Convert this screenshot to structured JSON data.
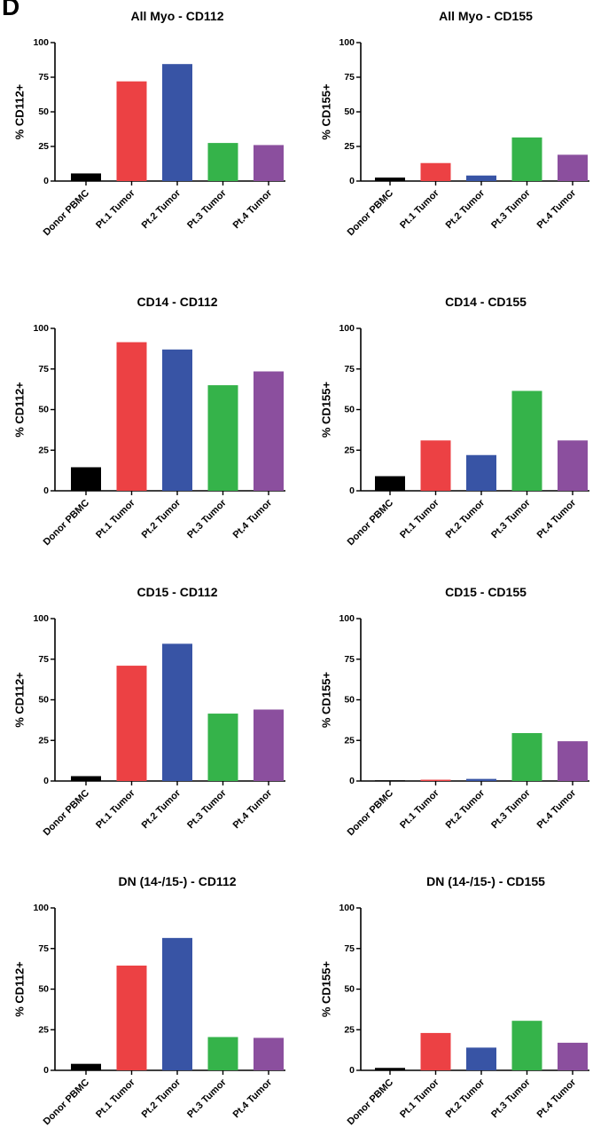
{
  "panel_letter": "D",
  "colors": {
    "Donor PBMC": "#000000",
    "Pt.1 Tumor": "#ec4144",
    "Pt.2 Tumor": "#3854a5",
    "Pt.3 Tumor": "#35b34a",
    "Pt.4 Tumor": "#8b4f9e"
  },
  "chart_data": [
    {
      "type": "bar",
      "title": "All Myo - CD112",
      "ylabel": "% CD112+",
      "ylim": [
        0,
        100
      ],
      "yticks": [
        0,
        25,
        50,
        75,
        100
      ],
      "categories": [
        "Donor PBMC",
        "Pt.1 Tumor",
        "Pt.2 Tumor",
        "Pt.3 Tumor",
        "Pt.4 Tumor"
      ],
      "values": [
        5.5,
        72,
        84.5,
        27.5,
        26
      ]
    },
    {
      "type": "bar",
      "title": "All Myo - CD155",
      "ylabel": "% CD155+",
      "ylim": [
        0,
        100
      ],
      "yticks": [
        0,
        25,
        50,
        75,
        100
      ],
      "categories": [
        "Donor PBMC",
        "Pt.1 Tumor",
        "Pt.2 Tumor",
        "Pt.3 Tumor",
        "Pt.4 Tumor"
      ],
      "values": [
        2.5,
        13,
        4,
        31.5,
        19
      ]
    },
    {
      "type": "bar",
      "title": "CD14 - CD112",
      "ylabel": "% CD112+",
      "ylim": [
        0,
        100
      ],
      "yticks": [
        0,
        25,
        50,
        75,
        100
      ],
      "categories": [
        "Donor PBMC",
        "Pt.1 Tumor",
        "Pt.2 Tumor",
        "Pt.3 Tumor",
        "Pt.4 Tumor"
      ],
      "values": [
        14.5,
        91.5,
        87,
        65,
        73.5
      ]
    },
    {
      "type": "bar",
      "title": "CD14 - CD155",
      "ylabel": "% CD155+",
      "ylim": [
        0,
        100
      ],
      "yticks": [
        0,
        25,
        50,
        75,
        100
      ],
      "categories": [
        "Donor PBMC",
        "Pt.1 Tumor",
        "Pt.2 Tumor",
        "Pt.3 Tumor",
        "Pt.4 Tumor"
      ],
      "values": [
        9,
        31,
        22,
        61.5,
        31
      ]
    },
    {
      "type": "bar",
      "title": "CD15 - CD112",
      "ylabel": "% CD112+",
      "ylim": [
        0,
        100
      ],
      "yticks": [
        0,
        25,
        50,
        75,
        100
      ],
      "categories": [
        "Donor PBMC",
        "Pt.1 Tumor",
        "Pt.2 Tumor",
        "Pt.3 Tumor",
        "Pt.4 Tumor"
      ],
      "values": [
        3,
        71,
        84.5,
        41.5,
        44
      ]
    },
    {
      "type": "bar",
      "title": "CD15 - CD155",
      "ylabel": "% CD155+",
      "ylim": [
        0,
        100
      ],
      "yticks": [
        0,
        25,
        50,
        75,
        100
      ],
      "categories": [
        "Donor PBMC",
        "Pt.1 Tumor",
        "Pt.2 Tumor",
        "Pt.3 Tumor",
        "Pt.4 Tumor"
      ],
      "values": [
        0.3,
        0.8,
        1.3,
        29.5,
        24.5
      ]
    },
    {
      "type": "bar",
      "title": "DN (14-/15-) - CD112",
      "ylabel": "% CD112+",
      "ylim": [
        0,
        100
      ],
      "yticks": [
        0,
        25,
        50,
        75,
        100
      ],
      "categories": [
        "Donor PBMC",
        "Pt.1 Tumor",
        "Pt.2 Tumor",
        "Pt.3 Tumor",
        "Pt.4 Tumor"
      ],
      "values": [
        4,
        64.5,
        81.5,
        20.5,
        20
      ]
    },
    {
      "type": "bar",
      "title": "DN (14-/15-) - CD155",
      "ylabel": "% CD155+",
      "ylim": [
        0,
        100
      ],
      "yticks": [
        0,
        25,
        50,
        75,
        100
      ],
      "categories": [
        "Donor PBMC",
        "Pt.1 Tumor",
        "Pt.2 Tumor",
        "Pt.3 Tumor",
        "Pt.4 Tumor"
      ],
      "values": [
        1.5,
        23,
        14,
        30.5,
        17
      ]
    }
  ]
}
